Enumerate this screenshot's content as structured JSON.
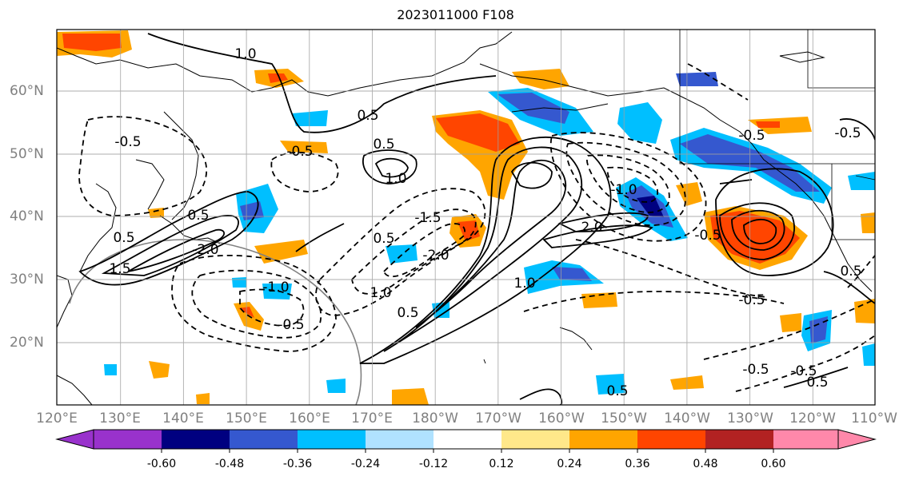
{
  "title": "2023011000 F108",
  "map": {
    "lon_labels": [
      "120°E",
      "130°E",
      "140°E",
      "150°E",
      "160°E",
      "170°E",
      "180°W",
      "170°W",
      "160°W",
      "150°W",
      "140°W",
      "130°W",
      "120°W",
      "110°W"
    ],
    "lat_labels": [
      "60°N",
      "50°N",
      "40°N",
      "30°N",
      "20°N"
    ],
    "contour_labels": [
      {
        "text": "1.0"
      },
      {
        "text": "-0.5"
      },
      {
        "text": "0.5"
      },
      {
        "text": "1.0"
      },
      {
        "text": "2.0"
      },
      {
        "text": "-1.0"
      },
      {
        "text": "-2.0"
      },
      {
        "text": "-1.5"
      },
      {
        "text": "0.5"
      },
      {
        "text": "1.0"
      },
      {
        "text": "-0.5"
      },
      {
        "text": "0.5"
      },
      {
        "text": "-0.5"
      },
      {
        "text": "-0.5"
      },
      {
        "text": "0.5"
      },
      {
        "text": "0.5"
      },
      {
        "text": "-0.5"
      },
      {
        "text": "0.5"
      },
      {
        "text": "1.5"
      },
      {
        "text": "-1.0"
      },
      {
        "text": "0.5"
      },
      {
        "text": "-2.0"
      },
      {
        "text": "0.5"
      },
      {
        "text": "-0.5"
      },
      {
        "text": "1.0"
      },
      {
        "text": "-0.5"
      },
      {
        "text": "-0.5"
      },
      {
        "text": "0.5"
      },
      {
        "text": "-0.5"
      }
    ]
  },
  "colorbar": {
    "ticks": [
      "-0.60",
      "-0.48",
      "-0.36",
      "-0.24",
      "-0.12",
      "0.12",
      "0.24",
      "0.36",
      "0.48",
      "0.60"
    ],
    "colors": [
      "#9932cc",
      "#000080",
      "#3558cf",
      "#00bfff",
      "#b0e2ff",
      "#ffffff",
      "#ffe88a",
      "#ffa500",
      "#ff4500",
      "#b22222",
      "#ff88aa"
    ]
  }
}
